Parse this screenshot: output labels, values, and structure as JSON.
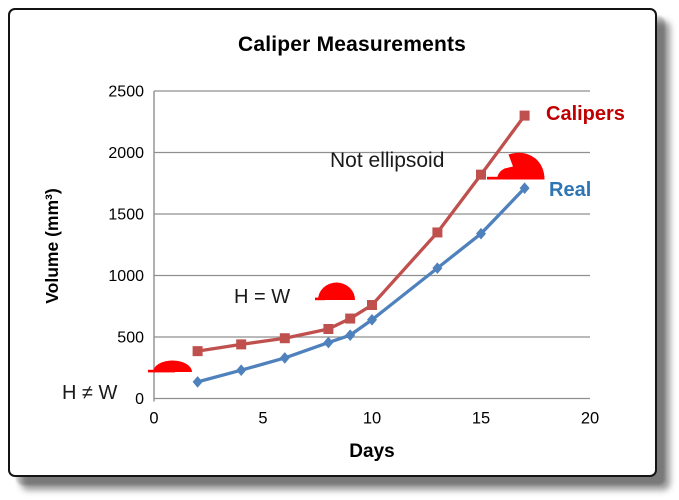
{
  "chart_data": {
    "type": "line",
    "title": "Caliper Measurements",
    "xlabel": "Days",
    "ylabel": "Volume (mm³)",
    "xlim": [
      0,
      20
    ],
    "ylim": [
      0,
      2500
    ],
    "x_ticks": [
      0,
      5,
      10,
      15,
      20
    ],
    "y_ticks": [
      0,
      500,
      1000,
      1500,
      2000,
      2500
    ],
    "grid": "horizontal",
    "gridline_color": "#8f8f8f",
    "legend_position": "right-inline",
    "x": [
      2,
      4,
      6,
      8,
      9,
      10,
      13,
      15,
      17
    ],
    "series": [
      {
        "name": "Calipers",
        "marker": "square",
        "color": "#C0504D",
        "label_color": "#C00000",
        "values": [
          385,
          440,
          490,
          565,
          650,
          760,
          1350,
          1820,
          2300
        ]
      },
      {
        "name": "Real",
        "marker": "diamond",
        "color": "#4F81BD",
        "label_color": "#2E75B6",
        "values": [
          135,
          230,
          330,
          455,
          515,
          640,
          1060,
          1340,
          1710
        ]
      }
    ]
  },
  "annotations": {
    "not_ellipsoid": "Not ellipsoid",
    "h_eq_w": "H = W",
    "h_neq_w": "H ≠ W",
    "shape_color": "#FF0000"
  }
}
